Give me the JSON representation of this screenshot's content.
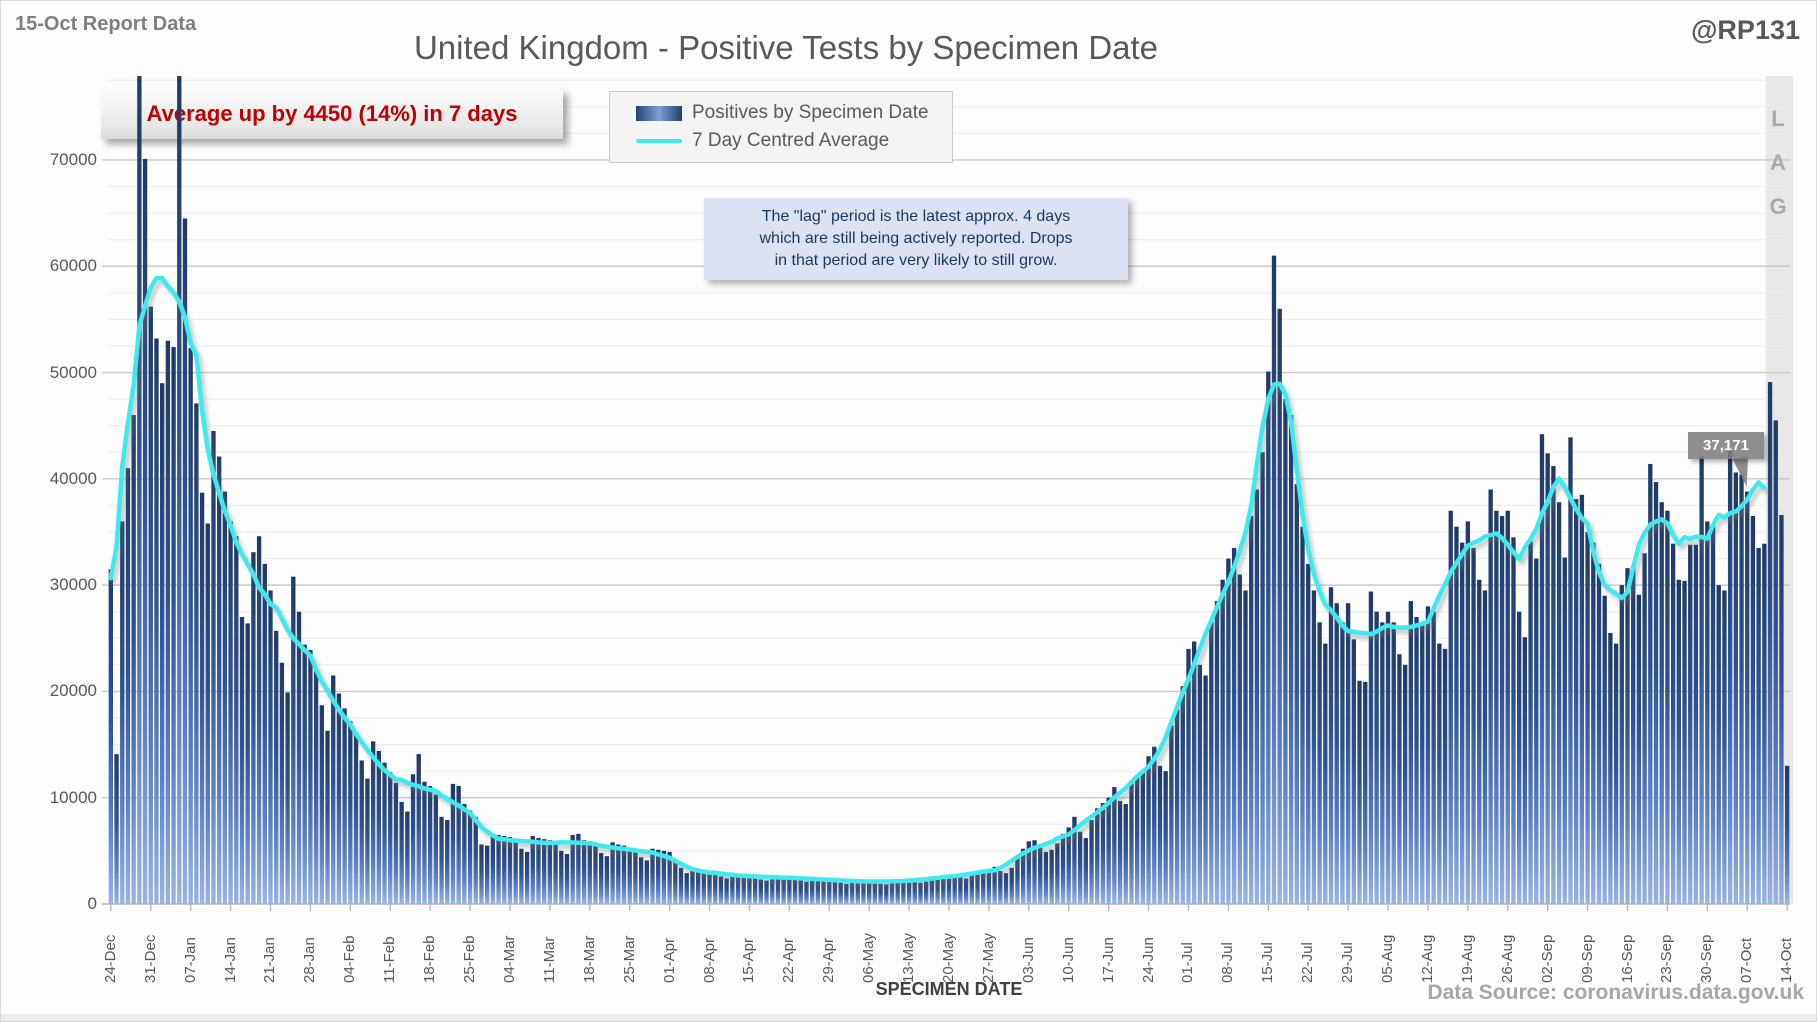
{
  "header": {
    "report_label": "15-Oct Report Data",
    "title": "United Kingdom - Positive Tests by Specimen Date",
    "watermark": "@RP131"
  },
  "annotations": {
    "average_callout": "Average up by 4450 (14%) in 7 days",
    "lag_note_lines": [
      "The \"lag\" period is the latest approx. 4 days",
      "which are still being actively reported.  Drops",
      "in that period are very likely to still grow."
    ],
    "last_average_label": "37,171",
    "lag_letters": [
      "L",
      "A",
      "G"
    ]
  },
  "legend": {
    "bar_label": "Positives by Specimen Date",
    "line_label": "7 Day Centred Average"
  },
  "footer": {
    "source": "Data Source: coronavirus.data.gov.uk",
    "x_axis_title": "SPECIMEN DATE"
  },
  "colors": {
    "bar_top": "#203a66",
    "bar_mid1": "#2f5291",
    "bar_mid2": "#5b7fc2",
    "bar_bottom": "#9ab4e2",
    "line": "#3fe9ee",
    "grid_minor": "#ececec",
    "grid_major": "#c9c9c9",
    "axis": "#b7b7b7",
    "lag_band": "#e8e8e8",
    "callout_red": "#c00000"
  },
  "chart_data": {
    "type": "bar",
    "title": "United Kingdom - Positive Tests by Specimen Date",
    "xlabel": "SPECIMEN DATE",
    "ylabel": "",
    "x_start_date": "24-Dec",
    "x_end_date": "14-Oct",
    "x_tick_labels": [
      "24-Dec",
      "31-Dec",
      "07-Jan",
      "14-Jan",
      "21-Jan",
      "28-Jan",
      "04-Feb",
      "11-Feb",
      "18-Feb",
      "25-Feb",
      "04-Mar",
      "11-Mar",
      "18-Mar",
      "25-Mar",
      "01-Apr",
      "08-Apr",
      "15-Apr",
      "22-Apr",
      "29-Apr",
      "06-May",
      "13-May",
      "20-May",
      "27-May",
      "03-Jun",
      "10-Jun",
      "17-Jun",
      "24-Jun",
      "01-Jul",
      "08-Jul",
      "15-Jul",
      "22-Jul",
      "29-Jul",
      "05-Aug",
      "12-Aug",
      "19-Aug",
      "26-Aug",
      "02-Sep",
      "09-Sep",
      "16-Sep",
      "23-Sep",
      "30-Sep",
      "07-Oct",
      "14-Oct"
    ],
    "y_tick_labels": [
      "0",
      "10000",
      "20000",
      "30000",
      "40000",
      "50000",
      "60000",
      "70000"
    ],
    "ylim": [
      0,
      77900
    ],
    "grid": "minor every 2500, major every 10000",
    "legend_position": "top center",
    "lag_days": 4,
    "series": [
      {
        "name": "Positives by Specimen Date",
        "type": "bar",
        "values": [
          31500,
          14100,
          36000,
          41000,
          46000,
          78400,
          70100,
          56200,
          53200,
          49000,
          53000,
          52400,
          78300,
          64500,
          52300,
          47100,
          38700,
          35800,
          44500,
          42100,
          38800,
          36000,
          34600,
          27000,
          26400,
          33100,
          34600,
          32000,
          29500,
          25700,
          22700,
          19900,
          30800,
          27500,
          24400,
          23900,
          22000,
          18700,
          16300,
          21500,
          19800,
          18400,
          17200,
          16000,
          13500,
          11800,
          15300,
          14400,
          13300,
          12400,
          11400,
          9600,
          8700,
          12200,
          14100,
          11500,
          11100,
          10300,
          8200,
          7900,
          11300,
          11100,
          9400,
          8800,
          8200,
          5600,
          5500,
          6600,
          6500,
          6400,
          6300,
          6100,
          5200,
          4900,
          6400,
          6200,
          6100,
          6000,
          5800,
          5000,
          4700,
          6500,
          6600,
          6000,
          5900,
          5700,
          4800,
          4500,
          5800,
          5600,
          5500,
          5300,
          5200,
          4400,
          4100,
          5200,
          5100,
          5000,
          4900,
          3900,
          3400,
          2900,
          3100,
          3300,
          3200,
          3100,
          3000,
          2600,
          2400,
          2900,
          2800,
          2750,
          2700,
          2650,
          2300,
          2200,
          2700,
          2650,
          2600,
          2550,
          2500,
          2200,
          2100,
          2500,
          2450,
          2400,
          2350,
          2300,
          2000,
          1900,
          2300,
          2250,
          2200,
          2200,
          2150,
          1900,
          1850,
          2300,
          2250,
          2200,
          2250,
          2300,
          2000,
          2100,
          2600,
          2550,
          2500,
          2700,
          2800,
          2500,
          2400,
          3000,
          2900,
          3100,
          3300,
          3500,
          3100,
          2900,
          3400,
          4500,
          5200,
          5900,
          6000,
          5400,
          4900,
          5100,
          5700,
          6600,
          7200,
          8200,
          6800,
          6200,
          7900,
          9000,
          9500,
          10000,
          11000,
          9700,
          9400,
          11600,
          12100,
          12500,
          13900,
          14800,
          13000,
          12500,
          16800,
          18300,
          20500,
          24000,
          24700,
          22500,
          21500,
          26500,
          28500,
          30500,
          32500,
          33500,
          31000,
          29500,
          36500,
          39000,
          42500,
          50100,
          61000,
          56000,
          47500,
          46000,
          39500,
          35500,
          32000,
          29500,
          26500,
          24500,
          29800,
          28300,
          26500,
          28300,
          24900,
          21000,
          20900,
          29400,
          27500,
          26500,
          27500,
          26500,
          23500,
          22500,
          28500,
          27000,
          26500,
          28000,
          27500,
          24500,
          24000,
          37000,
          35500,
          34000,
          36000,
          33500,
          30500,
          29500,
          39000,
          37000,
          36500,
          37000,
          34500,
          27500,
          25100,
          34100,
          32500,
          44200,
          42400,
          41200,
          37800,
          32600,
          43900,
          38100,
          38500,
          35000,
          34000,
          32000,
          29000,
          25500,
          24500,
          30000,
          31600,
          31800,
          29100,
          33000,
          41400,
          39700,
          37800,
          37000,
          33900,
          30500,
          30400,
          33800,
          33800,
          42100,
          36000,
          35500,
          30000,
          29500,
          42600,
          40600,
          40400,
          38800,
          36500,
          33500,
          33900,
          49100,
          45500,
          36600,
          13000
        ]
      },
      {
        "name": "7 Day Centred Average",
        "type": "line",
        "derivation": "7-day centered mean of bar values, ending 4 days before last bar",
        "last_value_label": "37,171"
      }
    ]
  }
}
